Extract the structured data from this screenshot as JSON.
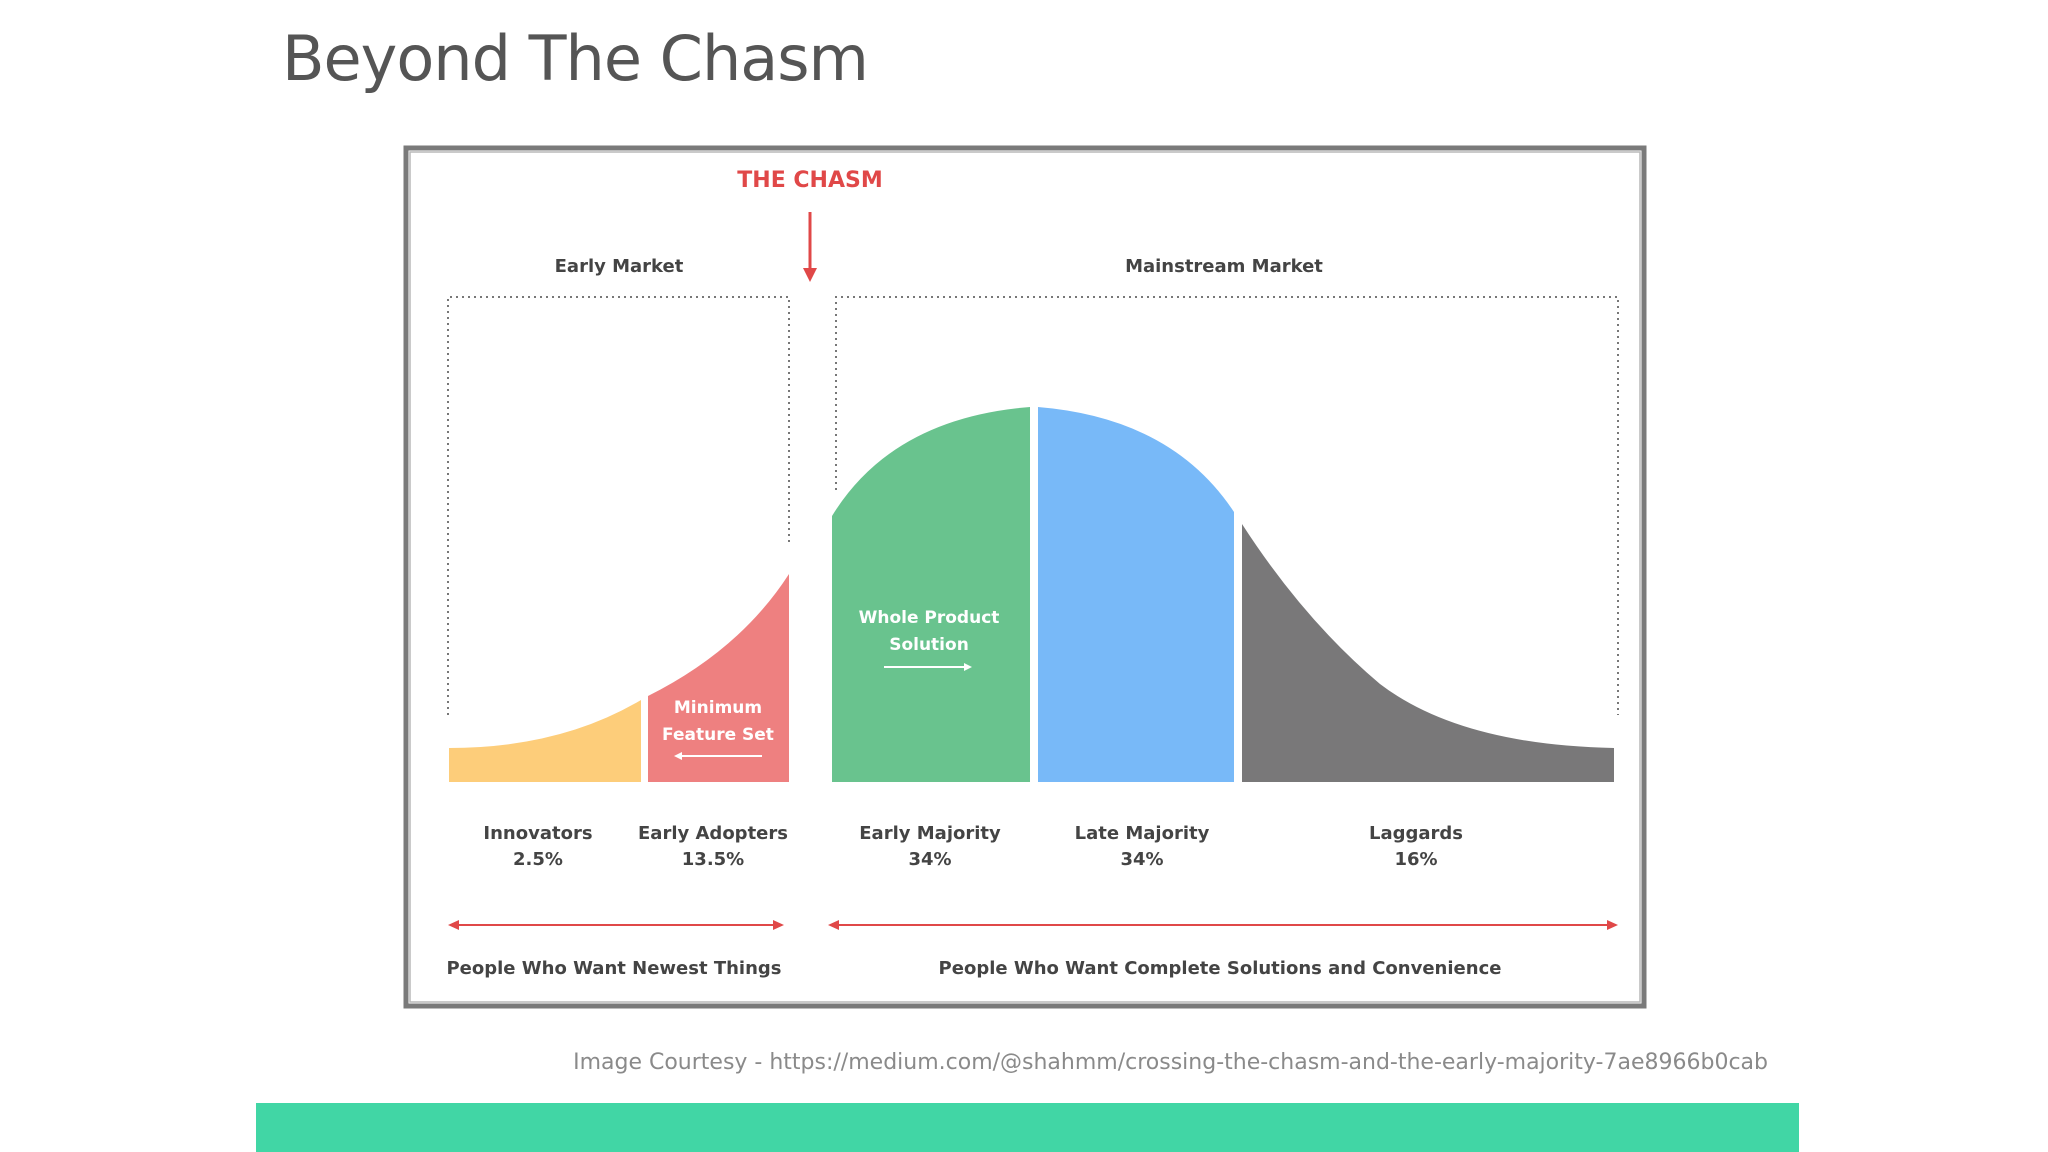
{
  "title": "Beyond The Chasm",
  "diagram": {
    "chasm_label": "THE CHASM",
    "early_market_label": "Early Market",
    "mainstream_market_label": "Mainstream Market",
    "min_feature_set": [
      "Minimum",
      "Feature Set"
    ],
    "whole_product_solution": [
      "Whole Product",
      "Solution"
    ],
    "segments": [
      {
        "name": "Innovators",
        "percent": "2.5%",
        "color": "#fdcd7a"
      },
      {
        "name": "Early Adopters",
        "percent": "13.5%",
        "color": "#ee8080"
      },
      {
        "name": "Early Majority",
        "percent": "34%",
        "color": "#69c38e"
      },
      {
        "name": "Late Majority",
        "percent": "34%",
        "color": "#78b9f8"
      },
      {
        "name": "Laggards",
        "percent": "16%",
        "color": "#797879"
      }
    ],
    "bottom_left_caption": "People Who Want Newest Things",
    "bottom_right_caption": "People Who Want Complete Solutions and Convenience",
    "accent_color": "#e04848"
  },
  "courtesy": "Image Courtesy - https://medium.com/@shahmm/crossing-the-chasm-and-the-early-majority-7ae8966b0cab"
}
